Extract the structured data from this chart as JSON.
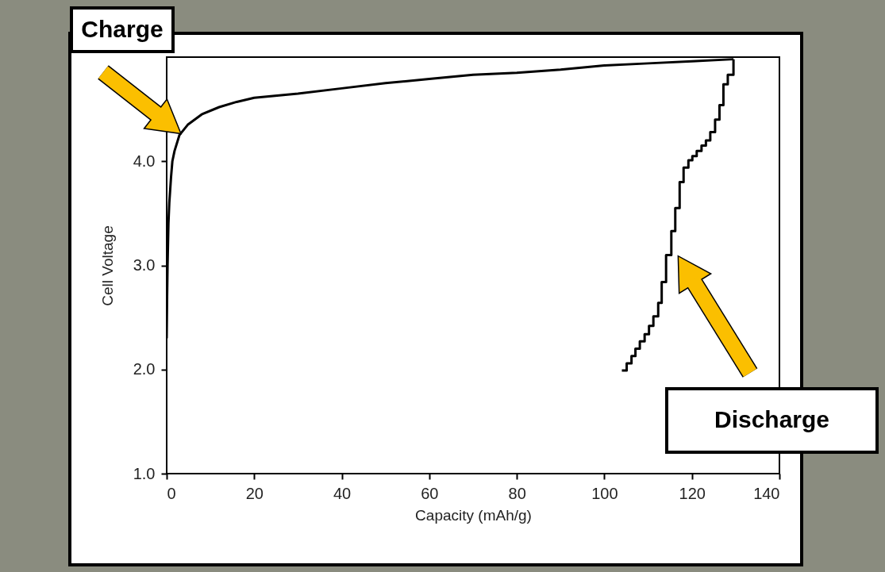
{
  "chart_data": {
    "type": "line",
    "xlabel": "Capacity (mAh/g)",
    "ylabel": "Cell Voltage",
    "xlim": [
      0,
      140
    ],
    "ylim": [
      1,
      5
    ],
    "xticks": [
      0,
      20,
      40,
      60,
      80,
      100,
      120,
      140
    ],
    "yticks": [
      {
        "value": 1,
        "label": "1.0"
      },
      {
        "value": 2,
        "label": "2.0"
      },
      {
        "value": 3,
        "label": "3.0"
      },
      {
        "value": 4,
        "label": "4.0"
      }
    ],
    "grid": false,
    "line_style": "solid",
    "annotations": [
      "Charge",
      "Discharge"
    ],
    "series": [
      {
        "color": "#000000",
        "x": [
          0,
          0.1,
          0.2,
          0.4,
          0.6,
          1.0,
          1.3,
          1.8,
          2.9,
          4.8,
          8,
          12,
          16,
          20,
          30,
          40,
          50,
          60,
          70,
          80,
          90,
          100,
          110,
          120,
          129.5
        ],
        "values": [
          2.3,
          2.7,
          3.0,
          3.4,
          3.6,
          3.85,
          4.0,
          4.1,
          4.25,
          4.35,
          4.45,
          4.52,
          4.57,
          4.61,
          4.65,
          4.7,
          4.75,
          4.79,
          4.83,
          4.85,
          4.88,
          4.92,
          4.94,
          4.96,
          4.98
        ]
      },
      {
        "color": "#000000",
        "x": [
          129.5,
          129.5,
          128.2,
          128.2,
          127.2,
          127.2,
          126.3,
          126.3,
          125.3,
          125.3,
          124.2,
          124.2,
          123.2,
          123.2,
          122.2,
          122.2,
          121.1,
          121.1,
          120.1,
          120.1,
          119.2,
          119.2,
          118.1,
          118.1,
          117.2,
          117.2,
          116.2,
          116.2,
          115.3,
          115.3,
          114.1,
          114.1,
          113.1,
          113.1,
          112.3,
          112.3,
          111.2,
          111.2,
          110.2,
          110.2,
          109.2,
          109.2,
          108.1,
          108.1,
          107.1,
          107.1,
          106.2,
          106.2,
          105.1,
          105.1,
          104.0
        ],
        "values": [
          4.98,
          4.83,
          4.83,
          4.74,
          4.74,
          4.54,
          4.54,
          4.4,
          4.4,
          4.28,
          4.28,
          4.2,
          4.2,
          4.15,
          4.15,
          4.1,
          4.1,
          4.05,
          4.05,
          4.01,
          4.01,
          3.94,
          3.94,
          3.8,
          3.8,
          3.55,
          3.55,
          3.33,
          3.33,
          3.1,
          3.1,
          2.84,
          2.84,
          2.64,
          2.64,
          2.51,
          2.51,
          2.42,
          2.42,
          2.34,
          2.34,
          2.27,
          2.27,
          2.2,
          2.2,
          2.13,
          2.13,
          2.06,
          2.06,
          1.99,
          1.99
        ]
      }
    ]
  }
}
